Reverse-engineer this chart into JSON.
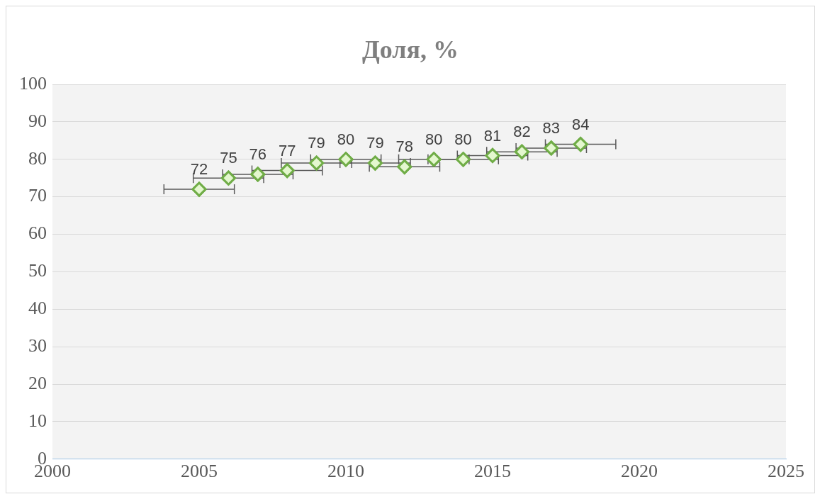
{
  "chart_data": {
    "type": "scatter",
    "title": "Доля, %",
    "x": [
      2005,
      2006,
      2007,
      2008,
      2009,
      2010,
      2011,
      2012,
      2013,
      2014,
      2015,
      2016,
      2017,
      2018
    ],
    "series": [
      {
        "color": "#70ad47",
        "values": [
          72,
          75,
          76,
          77,
          79,
          80,
          79,
          78,
          80,
          80,
          81,
          82,
          83,
          84
        ],
        "xerrors": [
          1.2,
          1.2,
          1.2,
          1.2,
          1.2,
          1.2,
          1.2,
          1.2,
          1.2,
          1.2,
          1.2,
          1.2,
          1.2,
          1.2
        ]
      }
    ],
    "xlim": [
      2000,
      2025
    ],
    "xticks": [
      2000,
      2005,
      2010,
      2015,
      2020,
      2025
    ],
    "ylim": [
      0,
      100
    ],
    "yticks": [
      0,
      10,
      20,
      30,
      40,
      50,
      60,
      70,
      80,
      90,
      100
    ],
    "grid": "y",
    "marker": "diamond",
    "data_labels": true,
    "legend": false
  }
}
